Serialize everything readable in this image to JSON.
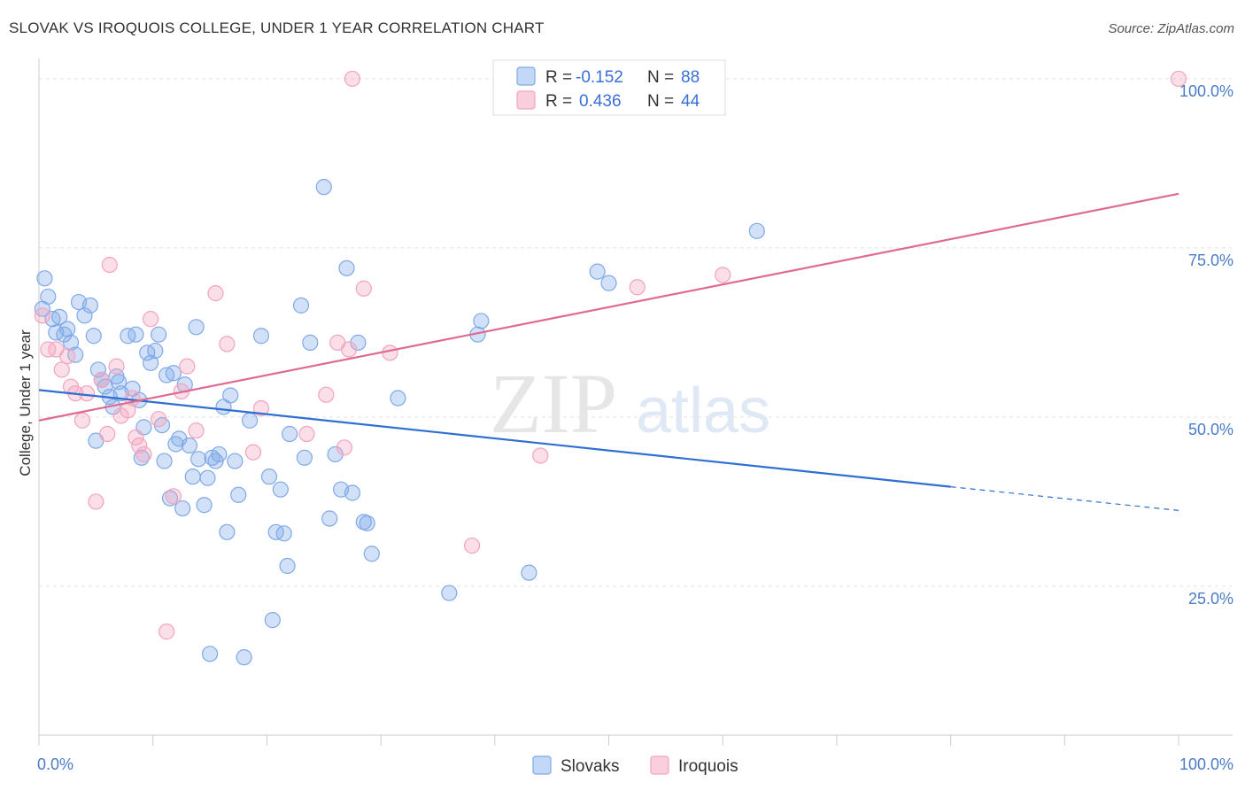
{
  "title": "SLOVAK VS IROQUOIS COLLEGE, UNDER 1 YEAR CORRELATION CHART",
  "source": "Source: ZipAtlas.com",
  "watermark": {
    "zip": "ZIP",
    "atlas": "atlas"
  },
  "chart_data": {
    "type": "scatter",
    "xlabel": "",
    "ylabel": "College, Under 1 year",
    "xlim": [
      0,
      100
    ],
    "ylim": [
      3,
      103
    ],
    "x_tick_labels": [
      {
        "value": 0,
        "label": "0.0%"
      },
      {
        "value": 100,
        "label": "100.0%"
      }
    ],
    "y_tick_labels": [
      {
        "value": 25,
        "label": "25.0%"
      },
      {
        "value": 50,
        "label": "50.0%"
      },
      {
        "value": 75,
        "label": "75.0%"
      },
      {
        "value": 100,
        "label": "100.0%"
      }
    ],
    "legend": {
      "r_label": "R =",
      "n_label": "N =",
      "entries": [
        {
          "name": "Slovaks",
          "r": "-0.152",
          "n": "88"
        },
        {
          "name": "Iroquois",
          "r": "0.436",
          "n": "44"
        }
      ]
    },
    "series": [
      {
        "name": "Slovaks",
        "color": "#7fa9e8",
        "line_color": "#2e6fd1",
        "trend": {
          "x0": 0,
          "y0": 54.0,
          "x1": 80,
          "y1": 39.7,
          "dash_to_x": 100,
          "dash_to_y": 36.2
        },
        "points": [
          [
            0.5,
            70.5
          ],
          [
            0.8,
            67.8
          ],
          [
            1.2,
            64.5
          ],
          [
            1.5,
            62.5
          ],
          [
            1.8,
            64.8
          ],
          [
            2.2,
            62.2
          ],
          [
            2.5,
            63.0
          ],
          [
            2.8,
            61.0
          ],
          [
            3.2,
            59.2
          ],
          [
            3.5,
            67.0
          ],
          [
            4.0,
            65.0
          ],
          [
            4.5,
            66.5
          ],
          [
            4.8,
            62.0
          ],
          [
            5.2,
            57.0
          ],
          [
            5.5,
            55.5
          ],
          [
            5.8,
            54.5
          ],
          [
            6.2,
            53.0
          ],
          [
            6.5,
            51.5
          ],
          [
            6.8,
            56.0
          ],
          [
            7.2,
            53.5
          ],
          [
            7.8,
            62.0
          ],
          [
            8.2,
            54.2
          ],
          [
            8.5,
            62.2
          ],
          [
            8.8,
            52.5
          ],
          [
            9.2,
            48.5
          ],
          [
            9.5,
            59.5
          ],
          [
            9.8,
            58.0
          ],
          [
            10.2,
            59.8
          ],
          [
            10.5,
            62.2
          ],
          [
            10.8,
            48.8
          ],
          [
            11.0,
            43.5
          ],
          [
            11.2,
            56.2
          ],
          [
            11.5,
            38.0
          ],
          [
            11.8,
            56.5
          ],
          [
            12.0,
            46.0
          ],
          [
            12.3,
            46.8
          ],
          [
            12.6,
            36.5
          ],
          [
            12.8,
            54.8
          ],
          [
            13.2,
            45.8
          ],
          [
            13.5,
            41.2
          ],
          [
            13.8,
            63.3
          ],
          [
            14.0,
            43.8
          ],
          [
            14.5,
            37.0
          ],
          [
            14.8,
            41.0
          ],
          [
            15.2,
            44.0
          ],
          [
            15.5,
            43.5
          ],
          [
            15.8,
            44.5
          ],
          [
            16.2,
            51.5
          ],
          [
            16.5,
            33.0
          ],
          [
            16.8,
            53.2
          ],
          [
            17.2,
            43.5
          ],
          [
            17.5,
            38.5
          ],
          [
            18.0,
            14.5
          ],
          [
            18.5,
            49.5
          ],
          [
            19.5,
            62.0
          ],
          [
            20.2,
            41.2
          ],
          [
            20.5,
            20.0
          ],
          [
            20.8,
            33.0
          ],
          [
            21.2,
            39.3
          ],
          [
            21.5,
            32.8
          ],
          [
            21.8,
            28.0
          ],
          [
            22.0,
            47.5
          ],
          [
            23.0,
            66.5
          ],
          [
            23.3,
            44.0
          ],
          [
            23.8,
            61.0
          ],
          [
            25.0,
            84.0
          ],
          [
            25.5,
            35.0
          ],
          [
            26.5,
            39.3
          ],
          [
            27.0,
            72.0
          ],
          [
            27.5,
            38.8
          ],
          [
            28.0,
            61.0
          ],
          [
            28.5,
            34.5
          ],
          [
            28.8,
            34.3
          ],
          [
            29.2,
            29.8
          ],
          [
            31.5,
            52.8
          ],
          [
            36.0,
            24.0
          ],
          [
            38.5,
            62.2
          ],
          [
            38.8,
            64.2
          ],
          [
            43.0,
            27.0
          ],
          [
            49.0,
            71.5
          ],
          [
            50.0,
            69.8
          ],
          [
            63.0,
            77.5
          ],
          [
            15.0,
            15.0
          ],
          [
            7.0,
            55.2
          ],
          [
            9.0,
            44.0
          ],
          [
            5.0,
            46.5
          ],
          [
            0.3,
            66.0
          ],
          [
            26.0,
            44.5
          ]
        ]
      },
      {
        "name": "Iroquois",
        "color": "#f4a3bd",
        "line_color": "#e06b92",
        "trend": {
          "x0": 0,
          "y0": 49.5,
          "x1": 100,
          "y1": 83.0
        },
        "points": [
          [
            0.3,
            65.0
          ],
          [
            0.8,
            60.0
          ],
          [
            1.5,
            60.0
          ],
          [
            2.0,
            57.0
          ],
          [
            2.5,
            59.0
          ],
          [
            2.8,
            54.5
          ],
          [
            3.2,
            53.5
          ],
          [
            3.8,
            49.5
          ],
          [
            4.2,
            53.5
          ],
          [
            5.0,
            37.5
          ],
          [
            5.5,
            55.5
          ],
          [
            6.0,
            47.5
          ],
          [
            6.2,
            72.5
          ],
          [
            6.8,
            57.5
          ],
          [
            7.2,
            50.2
          ],
          [
            7.8,
            51.0
          ],
          [
            8.2,
            52.8
          ],
          [
            8.5,
            47.0
          ],
          [
            8.8,
            45.8
          ],
          [
            9.2,
            44.5
          ],
          [
            9.8,
            64.5
          ],
          [
            10.5,
            49.7
          ],
          [
            11.2,
            18.3
          ],
          [
            11.8,
            38.3
          ],
          [
            12.5,
            53.8
          ],
          [
            13.0,
            57.5
          ],
          [
            13.8,
            48.0
          ],
          [
            15.5,
            68.3
          ],
          [
            16.5,
            60.8
          ],
          [
            18.8,
            44.8
          ],
          [
            19.5,
            51.3
          ],
          [
            23.5,
            47.5
          ],
          [
            25.2,
            53.3
          ],
          [
            26.2,
            61.0
          ],
          [
            26.8,
            45.5
          ],
          [
            27.2,
            60.0
          ],
          [
            28.5,
            69.0
          ],
          [
            30.8,
            59.5
          ],
          [
            38.0,
            31.0
          ],
          [
            44.0,
            44.3
          ],
          [
            52.5,
            69.2
          ],
          [
            60.0,
            71.0
          ],
          [
            27.5,
            100.0
          ],
          [
            100.0,
            100.0
          ]
        ]
      }
    ]
  }
}
